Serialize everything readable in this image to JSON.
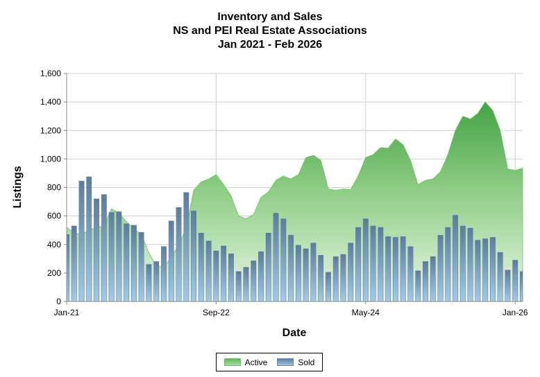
{
  "chart_data": {
    "type": "area",
    "title": [
      "Inventory and Sales",
      "NS and PEI Real Estate Associations",
      "Jan 2021 - Feb 2026"
    ],
    "xlabel": "Date",
    "ylabel": "Listings",
    "ylim": [
      0,
      1600
    ],
    "yticks": [
      0,
      200,
      400,
      600,
      800,
      1000,
      1200,
      1400,
      1600
    ],
    "ytick_labels": [
      "0",
      "200",
      "400",
      "600",
      "800",
      "1,000",
      "1,200",
      "1,400",
      "1,600"
    ],
    "xtick_labels": [
      {
        "label": "Jan-21",
        "month": "2021-01"
      },
      {
        "label": "Sep-22",
        "month": "2022-09"
      },
      {
        "label": "May-24",
        "month": "2024-05"
      },
      {
        "label": "Jan-26",
        "month": "2026-01"
      }
    ],
    "x": [
      "2021-01",
      "2021-02",
      "2021-03",
      "2021-04",
      "2021-05",
      "2021-06",
      "2021-07",
      "2021-08",
      "2021-09",
      "2021-10",
      "2021-11",
      "2021-12",
      "2022-01",
      "2022-02",
      "2022-03",
      "2022-04",
      "2022-05",
      "2022-06",
      "2022-07",
      "2022-08",
      "2022-09",
      "2022-10",
      "2022-11",
      "2022-12",
      "2023-01",
      "2023-02",
      "2023-03",
      "2023-04",
      "2023-05",
      "2023-06",
      "2023-07",
      "2023-08",
      "2023-09",
      "2023-10",
      "2023-11",
      "2023-12",
      "2024-01",
      "2024-02",
      "2024-03",
      "2024-04",
      "2024-05",
      "2024-06",
      "2024-07",
      "2024-08",
      "2024-09",
      "2024-10",
      "2024-11",
      "2024-12",
      "2025-01",
      "2025-02",
      "2025-03",
      "2025-04",
      "2025-05",
      "2025-06",
      "2025-07",
      "2025-08",
      "2025-09",
      "2025-10",
      "2025-11",
      "2025-12",
      "2026-01",
      "2026-02"
    ],
    "series": [
      {
        "name": "Active",
        "type": "area",
        "color": "#4ea84a",
        "values": [
          520,
          480,
          470,
          500,
          520,
          530,
          650,
          620,
          560,
          510,
          470,
          340,
          250,
          240,
          310,
          400,
          510,
          780,
          840,
          860,
          890,
          820,
          740,
          600,
          580,
          610,
          730,
          770,
          850,
          880,
          860,
          890,
          1010,
          1025,
          990,
          790,
          780,
          790,
          785,
          880,
          1010,
          1030,
          1080,
          1075,
          1140,
          1100,
          990,
          820,
          850,
          860,
          910,
          1030,
          1200,
          1300,
          1280,
          1320,
          1400,
          1340,
          1200,
          930,
          920,
          935
        ]
      },
      {
        "name": "Sold",
        "type": "bar",
        "color": "#6d8fb0",
        "values": [
          470,
          530,
          845,
          875,
          720,
          750,
          625,
          630,
          545,
          535,
          485,
          260,
          280,
          385,
          565,
          660,
          765,
          635,
          480,
          425,
          355,
          390,
          335,
          210,
          240,
          285,
          350,
          480,
          620,
          580,
          465,
          395,
          370,
          410,
          325,
          205,
          315,
          330,
          410,
          520,
          580,
          530,
          520,
          455,
          450,
          455,
          385,
          215,
          280,
          315,
          465,
          520,
          605,
          530,
          515,
          430,
          440,
          450,
          345,
          220,
          290,
          210
        ]
      }
    ],
    "grid": true,
    "legend": "bottom-center"
  },
  "legend": {
    "active_label": "Active",
    "sold_label": "Sold"
  }
}
